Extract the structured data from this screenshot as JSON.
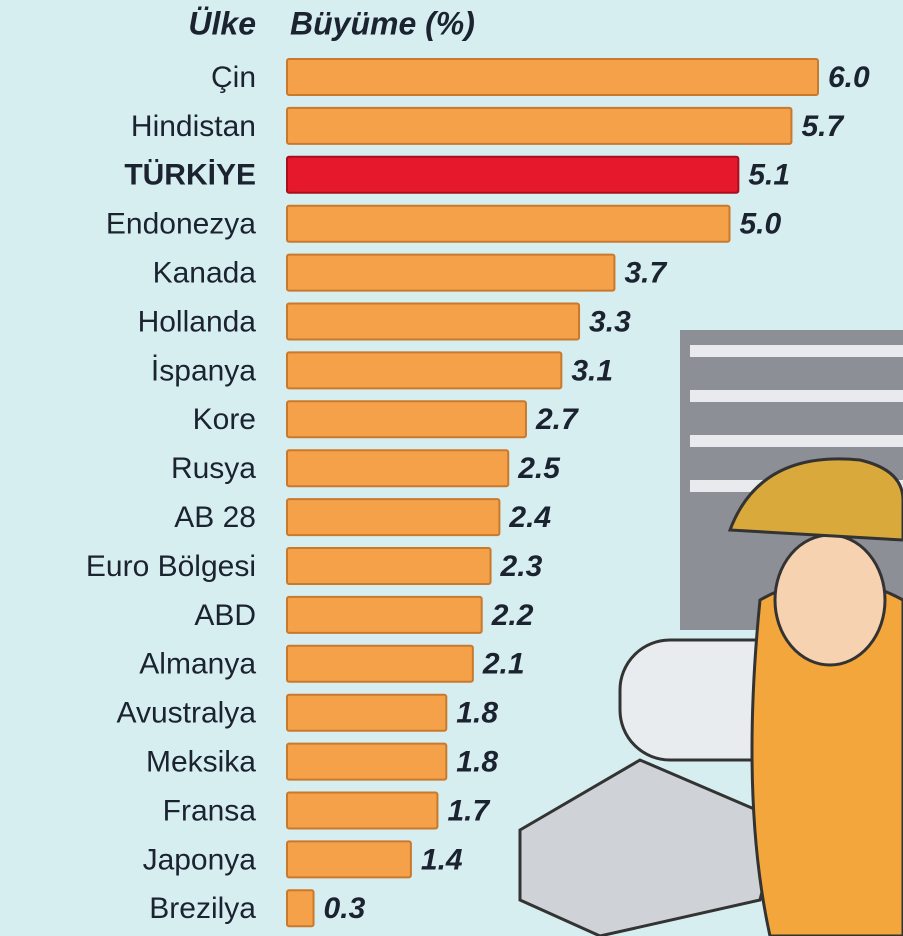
{
  "chart_data": {
    "type": "bar",
    "orientation": "horizontal",
    "header_category": "Ülke",
    "header_value": "Büyüme (%)",
    "categories": [
      "Çin",
      "Hindistan",
      "TÜRKİYE",
      "Endonezya",
      "Kanada",
      "Hollanda",
      "İspanya",
      "Kore",
      "Rusya",
      "AB 28",
      "Euro Bölgesi",
      "ABD",
      "Almanya",
      "Avustralya",
      "Meksika",
      "Fransa",
      "Japonya",
      "Brezilya"
    ],
    "values": [
      6.0,
      5.7,
      5.1,
      5.0,
      3.7,
      3.3,
      3.1,
      2.7,
      2.5,
      2.4,
      2.3,
      2.2,
      2.1,
      1.8,
      1.8,
      1.7,
      1.4,
      0.3
    ],
    "value_labels": [
      "6.0",
      "5.7",
      "5.1",
      "5.0",
      "3.7",
      "3.3",
      "3.1",
      "2.7",
      "2.5",
      "2.4",
      "2.3",
      "2.2",
      "2.1",
      "1.8",
      "1.8",
      "1.7",
      "1.4",
      "0.3"
    ],
    "color": "#f4a14a",
    "colors": [
      "#f4a14a",
      "#f4a14a",
      "#e5182c",
      "#f4a14a",
      "#f4a14a",
      "#f4a14a",
      "#f4a14a",
      "#f4a14a",
      "#f4a14a",
      "#f4a14a",
      "#f4a14a",
      "#f4a14a",
      "#f4a14a",
      "#f4a14a",
      "#f4a14a",
      "#f4a14a",
      "#f4a14a",
      "#f4a14a"
    ],
    "xlim": [
      0,
      6
    ]
  }
}
